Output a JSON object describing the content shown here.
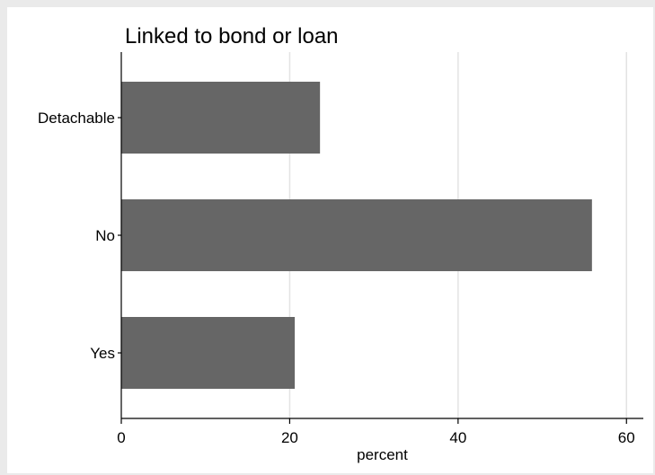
{
  "chart_data": {
    "type": "bar",
    "orientation": "horizontal",
    "title": "Linked to bond or loan",
    "categories": [
      "Detachable",
      "No",
      "Yes"
    ],
    "values": [
      23.6,
      55.9,
      20.6
    ],
    "xlabel": "percent",
    "ylabel": "",
    "xlim": [
      0,
      62
    ],
    "xticks": [
      0,
      20,
      40,
      60
    ],
    "grid": true,
    "bar_color": "#666666",
    "grid_color": "#e3e3e3"
  }
}
